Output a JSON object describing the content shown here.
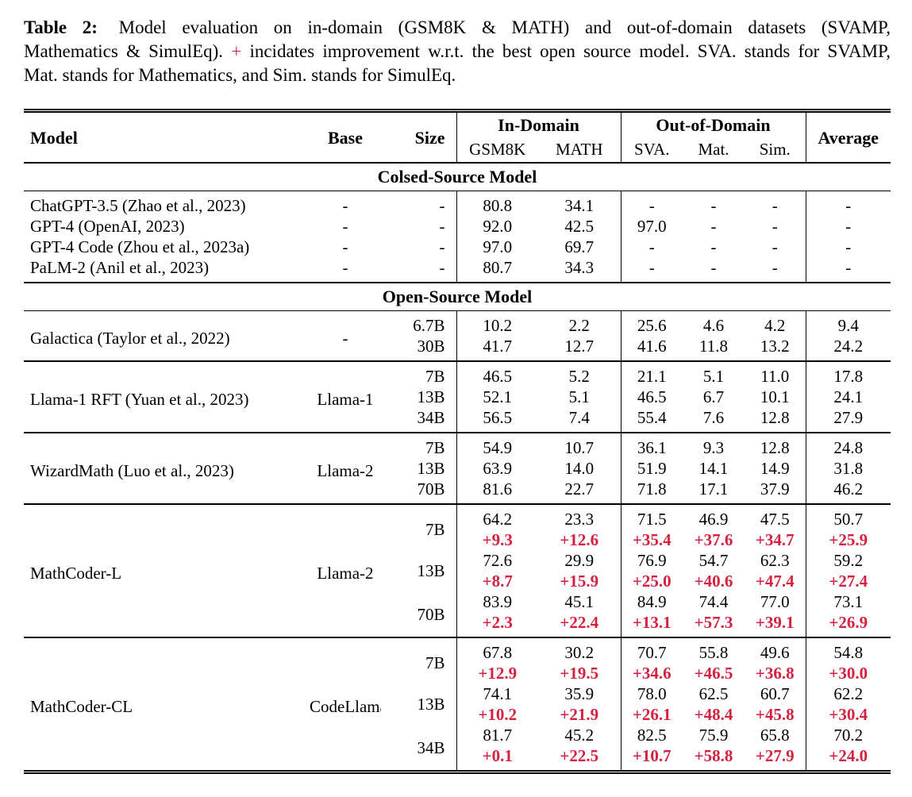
{
  "caption": {
    "line1_label": "Table 2:",
    "line1_text": "Model evaluation on in-domain (GSM8K & MATH) and out-of-domain datasets (SVAMP,",
    "line2_before_plus": "Mathematics & SimulEq).",
    "plus_sign": "+",
    "line2_after_plus": "incidates improvement w.r.t. the best open source model. SVA. stands for SVAMP,",
    "line3_text": "Mat. stands for Mathematics, and Sim. stands for SimulEq."
  },
  "colors": {
    "improvement_red": "#d6203f"
  },
  "table": {
    "headers": {
      "model": "Model",
      "base": "Base",
      "size": "Size",
      "in_domain": "In-Domain",
      "out_of_domain": "Out-of-Domain",
      "average": "Average",
      "in_domain_cols": [
        "GSM8K",
        "MATH"
      ],
      "out_of_domain_cols": [
        "SVA.",
        "Mat.",
        "Sim."
      ]
    },
    "sections": [
      {
        "title": "Colsed-Source Model",
        "groups": [
          {
            "model": "ChatGPT-3.5 (Zhao et al., 2023)",
            "base": "-",
            "rows": [
              {
                "size": "-",
                "values": [
                  "80.8",
                  "34.1",
                  "-",
                  "-",
                  "-",
                  "-"
                ]
              }
            ]
          },
          {
            "model": "GPT-4 (OpenAI, 2023)",
            "base": "-",
            "rows": [
              {
                "size": "-",
                "values": [
                  "92.0",
                  "42.5",
                  "97.0",
                  "-",
                  "-",
                  "-"
                ]
              }
            ]
          },
          {
            "model": "GPT-4 Code (Zhou et al., 2023a)",
            "base": "-",
            "rows": [
              {
                "size": "-",
                "values": [
                  "97.0",
                  "69.7",
                  "-",
                  "-",
                  "-",
                  "-"
                ]
              }
            ]
          },
          {
            "model": "PaLM-2 (Anil et al., 2023)",
            "base": "-",
            "rows": [
              {
                "size": "-",
                "values": [
                  "80.7",
                  "34.3",
                  "-",
                  "-",
                  "-",
                  "-"
                ]
              }
            ]
          }
        ]
      },
      {
        "title": "Open-Source Model",
        "groups": [
          {
            "model": "Galactica (Taylor et al., 2022)",
            "base": "-",
            "rows": [
              {
                "size": "6.7B",
                "values": [
                  "10.2",
                  "2.2",
                  "25.6",
                  "4.6",
                  "4.2",
                  "9.4"
                ]
              },
              {
                "size": "30B",
                "values": [
                  "41.7",
                  "12.7",
                  "41.6",
                  "11.8",
                  "13.2",
                  "24.2"
                ]
              }
            ]
          },
          {
            "model": "Llama-1 RFT (Yuan et al., 2023)",
            "base": "Llama-1",
            "rows": [
              {
                "size": "7B",
                "values": [
                  "46.5",
                  "5.2",
                  "21.1",
                  "5.1",
                  "11.0",
                  "17.8"
                ]
              },
              {
                "size": "13B",
                "values": [
                  "52.1",
                  "5.1",
                  "46.5",
                  "6.7",
                  "10.1",
                  "24.1"
                ]
              },
              {
                "size": "34B",
                "values": [
                  "56.5",
                  "7.4",
                  "55.4",
                  "7.6",
                  "12.8",
                  "27.9"
                ]
              }
            ]
          },
          {
            "model": "WizardMath (Luo et al., 2023)",
            "base": "Llama-2",
            "rows": [
              {
                "size": "7B",
                "values": [
                  "54.9",
                  "10.7",
                  "36.1",
                  "9.3",
                  "12.8",
                  "24.8"
                ]
              },
              {
                "size": "13B",
                "values": [
                  "63.9",
                  "14.0",
                  "51.9",
                  "14.1",
                  "14.9",
                  "31.8"
                ]
              },
              {
                "size": "70B",
                "values": [
                  "81.6",
                  "22.7",
                  "71.8",
                  "17.1",
                  "37.9",
                  "46.2"
                ]
              }
            ]
          },
          {
            "model": "MathCoder-L",
            "base": "Llama-2",
            "rows": [
              {
                "size": "7B",
                "values": [
                  "64.2",
                  "23.3",
                  "71.5",
                  "46.9",
                  "47.5",
                  "50.7"
                ],
                "delta": [
                  "+9.3",
                  "+12.6",
                  "+35.4",
                  "+37.6",
                  "+34.7",
                  "+25.9"
                ]
              },
              {
                "size": "13B",
                "values": [
                  "72.6",
                  "29.9",
                  "76.9",
                  "54.7",
                  "62.3",
                  "59.2"
                ],
                "delta": [
                  "+8.7",
                  "+15.9",
                  "+25.0",
                  "+40.6",
                  "+47.4",
                  "+27.4"
                ]
              },
              {
                "size": "70B",
                "values": [
                  "83.9",
                  "45.1",
                  "84.9",
                  "74.4",
                  "77.0",
                  "73.1"
                ],
                "delta": [
                  "+2.3",
                  "+22.4",
                  "+13.1",
                  "+57.3",
                  "+39.1",
                  "+26.9"
                ]
              }
            ]
          },
          {
            "model": "MathCoder-CL",
            "base": "CodeLlama",
            "rows": [
              {
                "size": "7B",
                "values": [
                  "67.8",
                  "30.2",
                  "70.7",
                  "55.8",
                  "49.6",
                  "54.8"
                ],
                "delta": [
                  "+12.9",
                  "+19.5",
                  "+34.6",
                  "+46.5",
                  "+36.8",
                  "+30.0"
                ]
              },
              {
                "size": "13B",
                "values": [
                  "74.1",
                  "35.9",
                  "78.0",
                  "62.5",
                  "60.7",
                  "62.2"
                ],
                "delta": [
                  "+10.2",
                  "+21.9",
                  "+26.1",
                  "+48.4",
                  "+45.8",
                  "+30.4"
                ]
              },
              {
                "size": "34B",
                "values": [
                  "81.7",
                  "45.2",
                  "82.5",
                  "75.9",
                  "65.8",
                  "70.2"
                ],
                "delta": [
                  "+0.1",
                  "+22.5",
                  "+10.7",
                  "+58.8",
                  "+27.9",
                  "+24.0"
                ]
              }
            ]
          }
        ]
      }
    ]
  }
}
